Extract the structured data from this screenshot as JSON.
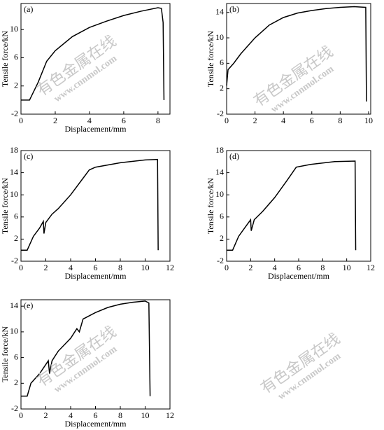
{
  "watermark": {
    "text": "有色金属在线",
    "url": "www.cnnmol.com"
  },
  "chart_data": [
    {
      "type": "line",
      "label": "(a)",
      "xlabel": "Displacement/mm",
      "ylabel": "Tensile force/kN",
      "xlim": [
        0,
        8.7
      ],
      "xticks": [
        0,
        2,
        4,
        6,
        8
      ],
      "ylim": [
        -2,
        13.7
      ],
      "yticks": [
        -2,
        2,
        6,
        10
      ],
      "x": [
        0,
        0.5,
        0.6,
        1,
        1.5,
        2,
        3,
        4,
        5,
        6,
        7,
        8,
        8.2,
        8.3,
        8.35
      ],
      "series": [
        {
          "color": "#000000",
          "values": [
            0,
            0,
            0.5,
            2.5,
            5.5,
            7,
            9,
            10.3,
            11.2,
            12,
            12.6,
            13.1,
            13,
            11,
            0
          ]
        }
      ]
    },
    {
      "type": "line",
      "label": "(b)",
      "ylabel": "Tensile force/kN",
      "xlim": [
        0,
        10.15
      ],
      "xticks": [
        0,
        2,
        4,
        6,
        8,
        10
      ],
      "ylim": [
        -2,
        15.4
      ],
      "yticks": [
        -2,
        2,
        6,
        10,
        14
      ],
      "x": [
        0,
        0.1,
        0.5,
        1,
        2,
        3,
        4,
        5,
        6,
        7,
        8,
        9,
        9.8,
        9.85
      ],
      "series": [
        {
          "color": "#000000",
          "values": [
            2.5,
            5,
            6,
            7.5,
            10,
            12,
            13.2,
            13.9,
            14.3,
            14.6,
            14.8,
            14.9,
            14.8,
            0
          ]
        }
      ]
    },
    {
      "type": "line",
      "label": "(c)",
      "xlabel": "Displacement/mm",
      "ylabel": "Tensile force/kN",
      "xlim": [
        0,
        12
      ],
      "xticks": [
        0,
        2,
        4,
        6,
        8,
        10,
        12
      ],
      "ylim": [
        -2,
        18
      ],
      "yticks": [
        -2,
        2,
        6,
        10,
        14,
        18
      ],
      "x": [
        0,
        0.5,
        0.7,
        1,
        1.5,
        1.8,
        1.85,
        2,
        2.5,
        3,
        4,
        5,
        5.5,
        6,
        8,
        10,
        11,
        11.05
      ],
      "series": [
        {
          "color": "#000000",
          "values": [
            0,
            0,
            1,
            2.5,
            4,
            5.2,
            3,
            5,
            6.5,
            7.5,
            10,
            13,
            14.5,
            15,
            15.8,
            16.3,
            16.4,
            0
          ]
        }
      ]
    },
    {
      "type": "line",
      "label": "(d)",
      "xlabel": "Displacement/mm",
      "ylabel": "Tensile force/kN",
      "xlim": [
        0,
        12
      ],
      "xticks": [
        0,
        2,
        4,
        6,
        8,
        10,
        12
      ],
      "ylim": [
        -2,
        18
      ],
      "yticks": [
        -2,
        2,
        6,
        10,
        14,
        18
      ],
      "x": [
        0,
        0.5,
        1,
        1.5,
        2,
        2.05,
        2.3,
        3,
        4,
        5,
        5.8,
        7,
        9,
        10.7,
        10.75
      ],
      "series": [
        {
          "color": "#000000",
          "values": [
            0,
            0,
            2.5,
            4,
            5.5,
            3.5,
            5.5,
            7,
            9.5,
            12.5,
            15,
            15.5,
            16,
            16.1,
            0
          ]
        }
      ]
    },
    {
      "type": "line",
      "label": "(e)",
      "xlabel": "Displacement/mm",
      "ylabel": "Tensile force/kN",
      "xlim": [
        0,
        12
      ],
      "xticks": [
        0,
        2,
        4,
        6,
        8,
        10,
        12
      ],
      "ylim": [
        -2,
        15
      ],
      "yticks": [
        -2,
        2,
        6,
        10,
        14
      ],
      "x": [
        0,
        0.5,
        0.8,
        1.5,
        2.2,
        2.3,
        2.5,
        3,
        4,
        4.5,
        4.7,
        5,
        6,
        7,
        8,
        9,
        10,
        10.3,
        10.4
      ],
      "series": [
        {
          "color": "#000000",
          "values": [
            0,
            0,
            2,
            3.5,
            5.5,
            3.5,
            5.5,
            7,
            9,
            10.5,
            10,
            12,
            13,
            13.8,
            14.3,
            14.6,
            14.8,
            14.5,
            0
          ]
        }
      ]
    }
  ]
}
